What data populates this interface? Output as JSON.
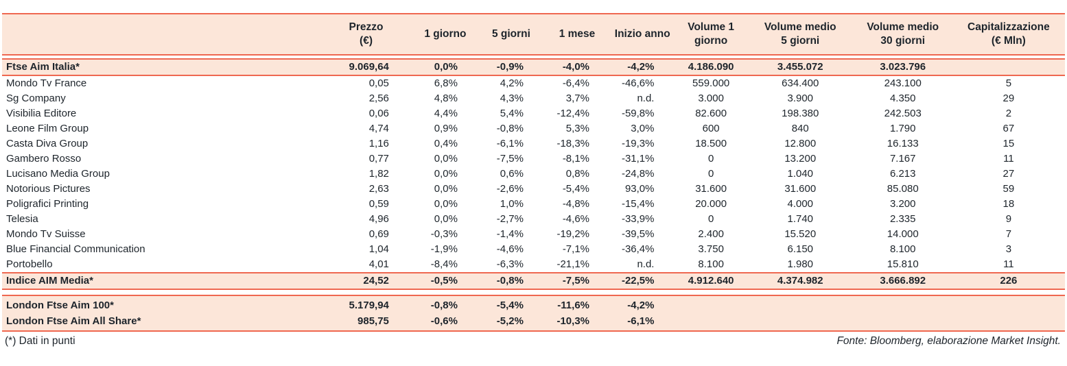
{
  "page": {
    "footnote": "(*) Dati in punti",
    "source": "Fonte: Bloomberg, elaborazione Market Insight."
  },
  "colors": {
    "band_background": "#fce6d9",
    "rule_line": "#ef6750",
    "text": "#1d242b"
  },
  "chart_data": {
    "type": "table",
    "columns": [
      "",
      "Prezzo\n(€)",
      "1 giorno",
      "5 giorni",
      "1 mese",
      "Inizio anno",
      "Volume 1\ngiorno",
      "Volume medio\n5 giorni",
      "Volume medio\n30 giorni",
      "Capitalizzazione\n(€ Mln)"
    ],
    "rows": [
      {
        "kind": "band",
        "cells": [
          "Ftse Aim Italia*",
          "9.069,64",
          "0,0%",
          "-0,9%",
          "-4,0%",
          "-4,2%",
          "4.186.090",
          "3.455.072",
          "3.023.796",
          ""
        ]
      },
      {
        "kind": "plain",
        "cells": [
          "Mondo Tv France",
          "0,05",
          "6,8%",
          "4,2%",
          "-6,4%",
          "-46,6%",
          "559.000",
          "634.400",
          "243.100",
          "5"
        ]
      },
      {
        "kind": "plain",
        "cells": [
          "Sg Company",
          "2,56",
          "4,8%",
          "4,3%",
          "3,7%",
          "n.d.",
          "3.000",
          "3.900",
          "4.350",
          "29"
        ]
      },
      {
        "kind": "plain",
        "cells": [
          "Visibilia Editore",
          "0,06",
          "4,4%",
          "5,4%",
          "-12,4%",
          "-59,8%",
          "82.600",
          "198.380",
          "242.503",
          "2"
        ]
      },
      {
        "kind": "plain",
        "cells": [
          "Leone Film Group",
          "4,74",
          "0,9%",
          "-0,8%",
          "5,3%",
          "3,0%",
          "600",
          "840",
          "1.790",
          "67"
        ]
      },
      {
        "kind": "plain",
        "cells": [
          "Casta Diva Group",
          "1,16",
          "0,4%",
          "-6,1%",
          "-18,3%",
          "-19,3%",
          "18.500",
          "12.800",
          "16.133",
          "15"
        ]
      },
      {
        "kind": "plain",
        "cells": [
          "Gambero Rosso",
          "0,77",
          "0,0%",
          "-7,5%",
          "-8,1%",
          "-31,1%",
          "0",
          "13.200",
          "7.167",
          "11"
        ]
      },
      {
        "kind": "plain",
        "cells": [
          "Lucisano Media Group",
          "1,82",
          "0,0%",
          "0,6%",
          "0,8%",
          "-24,8%",
          "0",
          "1.040",
          "6.213",
          "27"
        ]
      },
      {
        "kind": "plain",
        "cells": [
          "Notorious Pictures",
          "2,63",
          "0,0%",
          "-2,6%",
          "-5,4%",
          "93,0%",
          "31.600",
          "31.600",
          "85.080",
          "59"
        ]
      },
      {
        "kind": "plain",
        "cells": [
          "Poligrafici Printing",
          "0,59",
          "0,0%",
          "1,0%",
          "-4,8%",
          "-15,4%",
          "20.000",
          "4.000",
          "3.200",
          "18"
        ]
      },
      {
        "kind": "plain",
        "cells": [
          "Telesia",
          "4,96",
          "0,0%",
          "-2,7%",
          "-4,6%",
          "-33,9%",
          "0",
          "1.740",
          "2.335",
          "9"
        ]
      },
      {
        "kind": "plain",
        "cells": [
          "Mondo Tv Suisse",
          "0,69",
          "-0,3%",
          "-1,4%",
          "-19,2%",
          "-39,5%",
          "2.400",
          "15.520",
          "14.000",
          "7"
        ]
      },
      {
        "kind": "plain",
        "cells": [
          "Blue Financial Communication",
          "1,04",
          "-1,9%",
          "-4,6%",
          "-7,1%",
          "-36,4%",
          "3.750",
          "6.150",
          "8.100",
          "3"
        ]
      },
      {
        "kind": "plain",
        "cells": [
          "Portobello",
          "4,01",
          "-8,4%",
          "-6,3%",
          "-21,1%",
          "n.d.",
          "8.100",
          "1.980",
          "15.810",
          "11"
        ]
      },
      {
        "kind": "band",
        "cells": [
          "Indice AIM Media*",
          "24,52",
          "-0,5%",
          "-0,8%",
          "-7,5%",
          "-22,5%",
          "4.912.640",
          "4.374.982",
          "3.666.892",
          "226"
        ]
      },
      {
        "kind": "band-top",
        "gap_before": true,
        "cells": [
          "London Ftse Aim 100*",
          "5.179,94",
          "-0,8%",
          "-5,4%",
          "-11,6%",
          "-4,2%",
          "",
          "",
          "",
          ""
        ]
      },
      {
        "kind": "band-bottom",
        "cells": [
          "London Ftse Aim All Share*",
          "985,75",
          "-0,6%",
          "-5,2%",
          "-10,3%",
          "-6,1%",
          "",
          "",
          "",
          ""
        ]
      }
    ]
  }
}
